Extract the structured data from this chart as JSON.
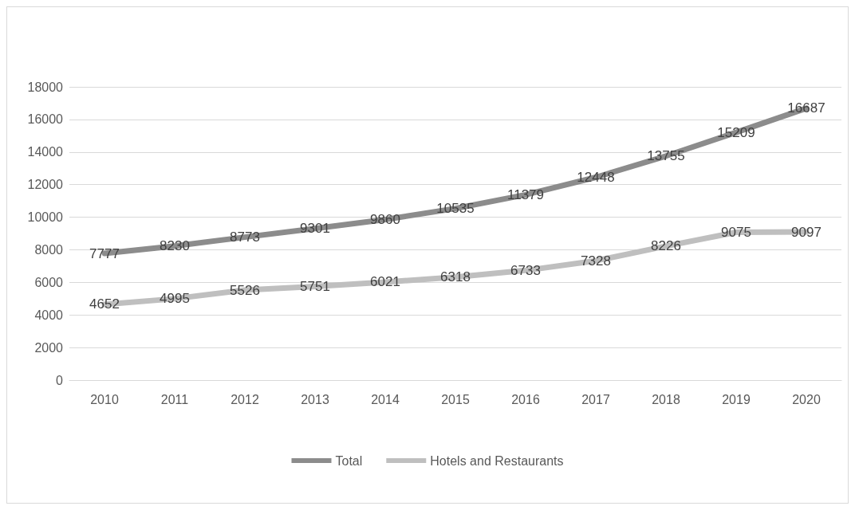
{
  "chart_data": {
    "type": "line",
    "categories": [
      "2010",
      "2011",
      "2012",
      "2013",
      "2014",
      "2015",
      "2016",
      "2017",
      "2018",
      "2019",
      "2020"
    ],
    "series": [
      {
        "name": "Total",
        "color": "#8c8c8c",
        "values": [
          7777,
          8230,
          8773,
          9301,
          9860,
          10535,
          11379,
          12448,
          13755,
          15209,
          16687
        ]
      },
      {
        "name": "Hotels and Restaurants",
        "color": "#bfbfbf",
        "values": [
          4652,
          4995,
          5526,
          5751,
          6021,
          6318,
          6733,
          7328,
          8226,
          9075,
          9097
        ]
      }
    ],
    "ylim": [
      0,
      18000
    ],
    "yticks": [
      0,
      2000,
      4000,
      6000,
      8000,
      10000,
      12000,
      14000,
      16000,
      18000
    ],
    "grid": "y",
    "legend": "bottom",
    "data_labels": true,
    "marker": "none",
    "line_style": "solid"
  }
}
